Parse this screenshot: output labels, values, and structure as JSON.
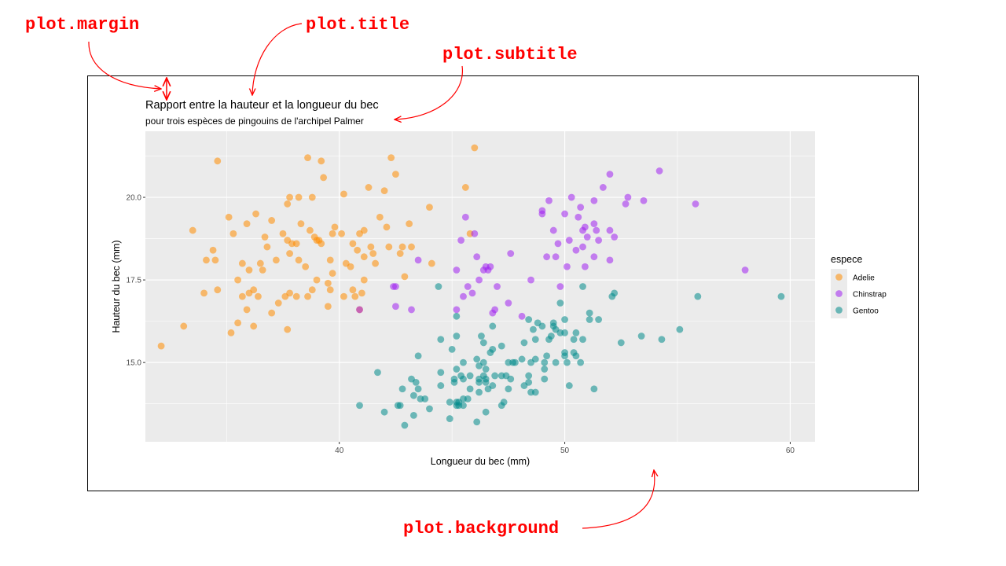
{
  "annotations": {
    "plot_margin": "plot.margin",
    "plot_title": "plot.title",
    "plot_subtitle": "plot.subtitle",
    "plot_background": "plot.background"
  },
  "colors": {
    "annotation": "#ff0000",
    "panel_bg": "#ebebeb",
    "grid": "#ffffff",
    "Adelie": "#ff8c00",
    "Chinstrap": "#a020f0",
    "Gentoo": "#008b8b"
  },
  "chart_data": {
    "type": "scatter",
    "title": "Rapport entre la hauteur et la longueur du bec",
    "subtitle": "pour trois espèces de pingouins de l'archipel Palmer",
    "xlabel": "Longueur du bec (mm)",
    "ylabel": "Hauteur du bec (mm)",
    "xlim": [
      31.4,
      61.1
    ],
    "ylim": [
      12.6,
      22.0
    ],
    "x_ticks": [
      40,
      50,
      60
    ],
    "x_tick_labels": [
      "40",
      "50",
      "60"
    ],
    "y_ticks": [
      15.0,
      17.5,
      20.0
    ],
    "y_tick_labels": [
      "15.0",
      "17.5",
      "20.0"
    ],
    "grid": true,
    "point_alpha": 0.55,
    "legend": {
      "title": "espece",
      "position": "right",
      "entries": [
        "Adelie",
        "Chinstrap",
        "Gentoo"
      ]
    },
    "series": [
      {
        "name": "Adelie",
        "points": [
          [
            32.1,
            15.5
          ],
          [
            33.1,
            16.1
          ],
          [
            33.5,
            19.0
          ],
          [
            34.0,
            17.1
          ],
          [
            34.1,
            18.1
          ],
          [
            34.4,
            18.4
          ],
          [
            34.5,
            18.1
          ],
          [
            34.6,
            17.2
          ],
          [
            34.6,
            21.1
          ],
          [
            35.1,
            19.4
          ],
          [
            35.2,
            15.9
          ],
          [
            35.3,
            18.9
          ],
          [
            35.5,
            16.2
          ],
          [
            35.5,
            17.5
          ],
          [
            35.7,
            17.0
          ],
          [
            35.7,
            18.0
          ],
          [
            35.9,
            16.6
          ],
          [
            35.9,
            19.2
          ],
          [
            36.0,
            17.1
          ],
          [
            36.0,
            17.8
          ],
          [
            36.2,
            16.1
          ],
          [
            36.2,
            17.2
          ],
          [
            36.3,
            19.5
          ],
          [
            36.4,
            17.0
          ],
          [
            36.5,
            18.0
          ],
          [
            36.6,
            17.8
          ],
          [
            36.7,
            18.8
          ],
          [
            36.8,
            18.5
          ],
          [
            37.0,
            16.5
          ],
          [
            37.0,
            19.3
          ],
          [
            37.2,
            18.1
          ],
          [
            37.3,
            16.8
          ],
          [
            37.5,
            18.9
          ],
          [
            37.6,
            17.0
          ],
          [
            37.7,
            16.0
          ],
          [
            37.7,
            18.7
          ],
          [
            37.7,
            19.8
          ],
          [
            37.8,
            17.1
          ],
          [
            37.8,
            18.3
          ],
          [
            37.8,
            20.0
          ],
          [
            37.9,
            18.6
          ],
          [
            38.1,
            17.0
          ],
          [
            38.1,
            18.6
          ],
          [
            38.2,
            18.1
          ],
          [
            38.2,
            20.0
          ],
          [
            38.3,
            19.2
          ],
          [
            38.5,
            17.9
          ],
          [
            38.6,
            17.0
          ],
          [
            38.6,
            21.2
          ],
          [
            38.7,
            19.0
          ],
          [
            38.8,
            17.2
          ],
          [
            38.8,
            20.0
          ],
          [
            38.9,
            18.8
          ],
          [
            39.0,
            17.5
          ],
          [
            39.0,
            18.7
          ],
          [
            39.1,
            18.7
          ],
          [
            39.2,
            18.6
          ],
          [
            39.2,
            21.1
          ],
          [
            39.3,
            20.6
          ],
          [
            39.5,
            16.7
          ],
          [
            39.5,
            17.4
          ],
          [
            39.6,
            17.2
          ],
          [
            39.6,
            18.1
          ],
          [
            39.7,
            17.7
          ],
          [
            39.7,
            18.9
          ],
          [
            39.8,
            19.1
          ],
          [
            40.1,
            18.9
          ],
          [
            40.2,
            17.0
          ],
          [
            40.2,
            20.1
          ],
          [
            40.3,
            18.0
          ],
          [
            40.5,
            17.9
          ],
          [
            40.6,
            17.2
          ],
          [
            40.6,
            18.6
          ],
          [
            40.7,
            17.0
          ],
          [
            40.8,
            18.4
          ],
          [
            40.9,
            16.6
          ],
          [
            40.9,
            18.9
          ],
          [
            41.0,
            17.1
          ],
          [
            41.1,
            17.5
          ],
          [
            41.1,
            18.2
          ],
          [
            41.1,
            19.0
          ],
          [
            41.3,
            20.3
          ],
          [
            41.4,
            18.5
          ],
          [
            41.5,
            18.3
          ],
          [
            41.6,
            18.0
          ],
          [
            41.8,
            19.4
          ],
          [
            42.0,
            20.2
          ],
          [
            42.1,
            19.1
          ],
          [
            42.2,
            18.5
          ],
          [
            42.3,
            21.2
          ],
          [
            42.5,
            20.7
          ],
          [
            42.7,
            18.3
          ],
          [
            42.8,
            18.5
          ],
          [
            42.9,
            17.6
          ],
          [
            43.1,
            19.2
          ],
          [
            43.2,
            18.5
          ],
          [
            44.0,
            19.7
          ],
          [
            44.1,
            18.0
          ],
          [
            45.6,
            20.3
          ],
          [
            45.8,
            18.9
          ],
          [
            46.0,
            21.5
          ]
        ]
      },
      {
        "name": "Chinstrap",
        "points": [
          [
            40.9,
            16.6
          ],
          [
            42.4,
            17.3
          ],
          [
            42.5,
            16.7
          ],
          [
            42.5,
            17.3
          ],
          [
            43.2,
            16.6
          ],
          [
            43.5,
            18.1
          ],
          [
            45.2,
            16.6
          ],
          [
            45.2,
            17.8
          ],
          [
            45.4,
            18.7
          ],
          [
            45.5,
            17.0
          ],
          [
            45.6,
            19.4
          ],
          [
            45.7,
            17.3
          ],
          [
            45.9,
            17.1
          ],
          [
            46.0,
            18.9
          ],
          [
            46.1,
            18.2
          ],
          [
            46.2,
            17.5
          ],
          [
            46.4,
            17.8
          ],
          [
            46.5,
            17.9
          ],
          [
            46.6,
            17.8
          ],
          [
            46.7,
            17.9
          ],
          [
            46.8,
            16.5
          ],
          [
            46.9,
            16.6
          ],
          [
            47.0,
            17.3
          ],
          [
            47.5,
            16.8
          ],
          [
            47.6,
            18.3
          ],
          [
            48.1,
            16.4
          ],
          [
            48.5,
            17.5
          ],
          [
            49.0,
            19.5
          ],
          [
            49.0,
            19.6
          ],
          [
            49.2,
            18.2
          ],
          [
            49.3,
            19.9
          ],
          [
            49.5,
            19.0
          ],
          [
            49.6,
            18.2
          ],
          [
            49.7,
            18.6
          ],
          [
            49.8,
            17.3
          ],
          [
            50.0,
            19.5
          ],
          [
            50.1,
            17.9
          ],
          [
            50.2,
            18.7
          ],
          [
            50.3,
            20.0
          ],
          [
            50.5,
            18.4
          ],
          [
            50.6,
            19.4
          ],
          [
            50.7,
            19.7
          ],
          [
            50.8,
            18.5
          ],
          [
            50.8,
            19.0
          ],
          [
            50.9,
            17.9
          ],
          [
            50.9,
            19.1
          ],
          [
            51.0,
            18.8
          ],
          [
            51.3,
            18.2
          ],
          [
            51.3,
            19.2
          ],
          [
            51.3,
            19.9
          ],
          [
            51.4,
            19.0
          ],
          [
            51.5,
            18.7
          ],
          [
            51.7,
            20.3
          ],
          [
            52.0,
            18.1
          ],
          [
            52.0,
            19.0
          ],
          [
            52.0,
            20.7
          ],
          [
            52.2,
            18.8
          ],
          [
            52.7,
            19.8
          ],
          [
            52.8,
            20.0
          ],
          [
            53.5,
            19.9
          ],
          [
            54.2,
            20.8
          ],
          [
            55.8,
            19.8
          ],
          [
            58.0,
            17.8
          ]
        ]
      },
      {
        "name": "Gentoo",
        "points": [
          [
            40.9,
            13.7
          ],
          [
            41.7,
            14.7
          ],
          [
            42.0,
            13.5
          ],
          [
            42.6,
            13.7
          ],
          [
            42.7,
            13.7
          ],
          [
            42.8,
            14.2
          ],
          [
            42.9,
            13.1
          ],
          [
            43.2,
            14.5
          ],
          [
            43.3,
            13.4
          ],
          [
            43.3,
            14.0
          ],
          [
            43.4,
            14.4
          ],
          [
            43.5,
            14.2
          ],
          [
            43.5,
            15.2
          ],
          [
            43.6,
            13.9
          ],
          [
            43.8,
            13.9
          ],
          [
            44.0,
            13.6
          ],
          [
            44.4,
            17.3
          ],
          [
            44.5,
            14.3
          ],
          [
            44.5,
            14.7
          ],
          [
            44.5,
            15.7
          ],
          [
            44.9,
            13.3
          ],
          [
            44.9,
            13.8
          ],
          [
            45.0,
            15.4
          ],
          [
            45.1,
            14.4
          ],
          [
            45.1,
            14.5
          ],
          [
            45.2,
            13.7
          ],
          [
            45.2,
            13.8
          ],
          [
            45.2,
            14.8
          ],
          [
            45.2,
            15.8
          ],
          [
            45.2,
            16.4
          ],
          [
            45.3,
            13.7
          ],
          [
            45.3,
            13.8
          ],
          [
            45.4,
            14.6
          ],
          [
            45.5,
            13.7
          ],
          [
            45.5,
            13.9
          ],
          [
            45.5,
            14.5
          ],
          [
            45.5,
            15.0
          ],
          [
            45.7,
            13.9
          ],
          [
            45.8,
            14.2
          ],
          [
            45.8,
            14.6
          ],
          [
            46.1,
            13.2
          ],
          [
            46.1,
            15.1
          ],
          [
            46.2,
            14.1
          ],
          [
            46.2,
            14.4
          ],
          [
            46.2,
            14.5
          ],
          [
            46.2,
            14.9
          ],
          [
            46.3,
            15.8
          ],
          [
            46.4,
            14.6
          ],
          [
            46.4,
            15.0
          ],
          [
            46.4,
            15.6
          ],
          [
            46.5,
            13.5
          ],
          [
            46.5,
            14.4
          ],
          [
            46.5,
            14.5
          ],
          [
            46.5,
            14.8
          ],
          [
            46.6,
            14.2
          ],
          [
            46.7,
            15.3
          ],
          [
            46.8,
            14.3
          ],
          [
            46.8,
            15.4
          ],
          [
            46.8,
            16.1
          ],
          [
            46.9,
            14.6
          ],
          [
            47.2,
            13.7
          ],
          [
            47.2,
            14.6
          ],
          [
            47.2,
            15.5
          ],
          [
            47.3,
            13.8
          ],
          [
            47.4,
            14.6
          ],
          [
            47.5,
            14.2
          ],
          [
            47.5,
            15.0
          ],
          [
            47.6,
            14.5
          ],
          [
            47.7,
            15.0
          ],
          [
            47.8,
            15.0
          ],
          [
            48.1,
            15.1
          ],
          [
            48.2,
            14.3
          ],
          [
            48.2,
            15.6
          ],
          [
            48.4,
            14.4
          ],
          [
            48.4,
            14.6
          ],
          [
            48.4,
            16.3
          ],
          [
            48.5,
            14.1
          ],
          [
            48.5,
            15.0
          ],
          [
            48.6,
            16.0
          ],
          [
            48.7,
            14.1
          ],
          [
            48.7,
            15.1
          ],
          [
            48.7,
            15.7
          ],
          [
            48.8,
            16.2
          ],
          [
            49.0,
            16.1
          ],
          [
            49.1,
            14.5
          ],
          [
            49.1,
            14.8
          ],
          [
            49.1,
            15.0
          ],
          [
            49.2,
            15.2
          ],
          [
            49.3,
            15.7
          ],
          [
            49.4,
            15.8
          ],
          [
            49.5,
            16.1
          ],
          [
            49.5,
            16.2
          ],
          [
            49.6,
            15.0
          ],
          [
            49.6,
            16.0
          ],
          [
            49.8,
            15.9
          ],
          [
            49.8,
            16.8
          ],
          [
            50.0,
            15.2
          ],
          [
            50.0,
            15.3
          ],
          [
            50.0,
            15.9
          ],
          [
            50.0,
            16.3
          ],
          [
            50.1,
            15.0
          ],
          [
            50.2,
            14.3
          ],
          [
            50.4,
            15.3
          ],
          [
            50.4,
            15.7
          ],
          [
            50.5,
            15.2
          ],
          [
            50.5,
            15.9
          ],
          [
            50.7,
            15.0
          ],
          [
            50.8,
            15.7
          ],
          [
            50.8,
            17.3
          ],
          [
            51.1,
            16.3
          ],
          [
            51.1,
            16.5
          ],
          [
            51.3,
            14.2
          ],
          [
            51.5,
            16.3
          ],
          [
            52.1,
            17.0
          ],
          [
            52.2,
            17.1
          ],
          [
            52.5,
            15.6
          ],
          [
            53.4,
            15.8
          ],
          [
            54.3,
            15.7
          ],
          [
            55.1,
            16.0
          ],
          [
            55.9,
            17.0
          ],
          [
            59.6,
            17.0
          ]
        ]
      }
    ]
  }
}
